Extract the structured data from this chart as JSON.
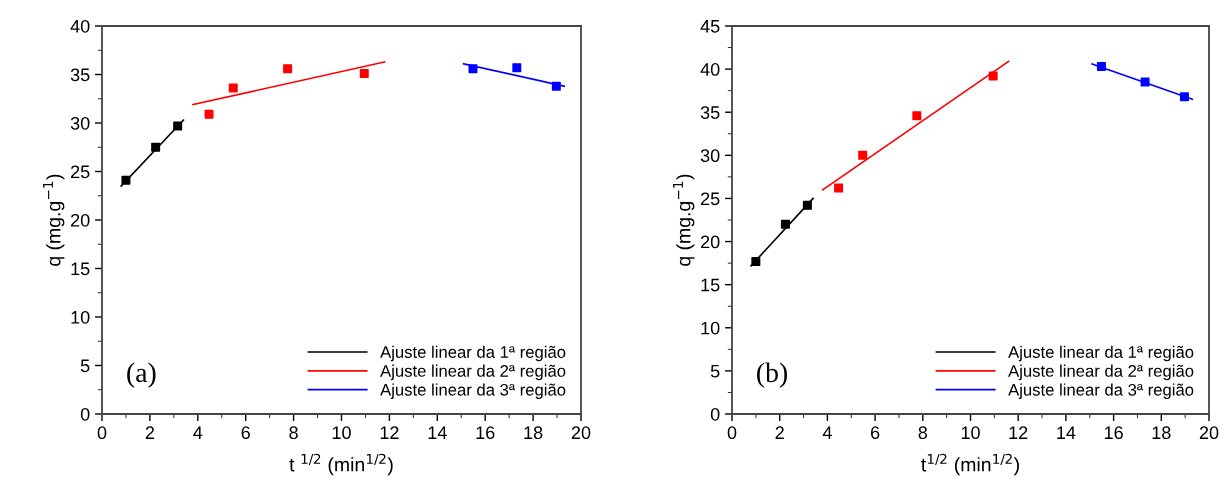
{
  "chart_data": [
    {
      "type": "scatter",
      "xlabel": "t $^{1/2}$ (min$^{1/2}$)",
      "ylabel": "q (mg.g$^{−1}$)",
      "annotations": [
        "(a)"
      ],
      "xlim": [
        0,
        20
      ],
      "xticks": [
        0,
        2,
        4,
        6,
        8,
        10,
        12,
        14,
        16,
        18,
        20
      ],
      "ylim": [
        0,
        40
      ],
      "yticks": [
        0,
        5,
        10,
        15,
        20,
        25,
        30,
        35,
        40
      ],
      "grid": false,
      "legend": "bottom right",
      "series": [
        {
          "marker": "square",
          "color": "#000000",
          "x": [
            1,
            2.24,
            3.16
          ],
          "values": [
            24.1,
            27.5,
            29.7
          ]
        },
        {
          "marker": "square",
          "color": "#ff0000",
          "x": [
            4.47,
            5.48,
            7.75,
            10.95
          ],
          "values": [
            30.9,
            33.6,
            35.6,
            35.1
          ]
        },
        {
          "marker": "square",
          "color": "#0000ff",
          "x": [
            15.49,
            17.32,
            18.97
          ],
          "values": [
            35.6,
            35.7,
            33.8
          ]
        },
        {
          "type": "line",
          "marker": "none",
          "name": "Ajuste linear da 1ª região",
          "color": "#000000",
          "x": [
            0.8,
            3.4
          ],
          "values": [
            23.5,
            30.3
          ]
        },
        {
          "type": "line",
          "marker": "none",
          "name": "Ajuste linear da 2ª região",
          "color": "#ff0000",
          "x": [
            3.8,
            11.8
          ],
          "values": [
            31.9,
            36.3
          ]
        },
        {
          "type": "line",
          "marker": "none",
          "name": "Ajuste linear da 3ª região",
          "color": "#0000ff",
          "x": [
            15.1,
            19.3
          ],
          "values": [
            36.1,
            33.8
          ]
        }
      ]
    },
    {
      "type": "scatter",
      "xlabel": "t$^{1/2}$ (min$^{1/2}$)",
      "ylabel": "q (mg.g$^{−1}$)",
      "annotations": [
        "(b)"
      ],
      "xlim": [
        0,
        20
      ],
      "xticks": [
        0,
        2,
        4,
        6,
        8,
        10,
        12,
        14,
        16,
        18,
        20
      ],
      "ylim": [
        0,
        45
      ],
      "yticks": [
        0,
        5,
        10,
        15,
        20,
        25,
        30,
        35,
        40,
        45
      ],
      "grid": false,
      "legend": "bottom right",
      "series": [
        {
          "marker": "square",
          "color": "#000000",
          "x": [
            1,
            2.24,
            3.16
          ],
          "values": [
            17.7,
            22.0,
            24.2
          ]
        },
        {
          "marker": "square",
          "color": "#ff0000",
          "x": [
            4.47,
            5.48,
            7.75,
            10.95
          ],
          "values": [
            26.2,
            30.0,
            34.6,
            39.2
          ]
        },
        {
          "marker": "square",
          "color": "#0000ff",
          "x": [
            15.49,
            17.32,
            18.97
          ],
          "values": [
            40.3,
            38.5,
            36.8
          ]
        },
        {
          "type": "line",
          "marker": "none",
          "name": "Ajuste linear da 1ª região",
          "color": "#000000",
          "x": [
            0.8,
            3.4
          ],
          "values": [
            17.2,
            25.0
          ]
        },
        {
          "type": "line",
          "marker": "none",
          "name": "Ajuste linear da 2ª região",
          "color": "#ff0000",
          "x": [
            3.8,
            11.6
          ],
          "values": [
            26.0,
            40.9
          ]
        },
        {
          "type": "line",
          "marker": "none",
          "name": "Ajuste linear da 3ª região",
          "color": "#0000ff",
          "x": [
            15.1,
            19.3
          ],
          "values": [
            40.6,
            36.5
          ]
        }
      ]
    }
  ]
}
